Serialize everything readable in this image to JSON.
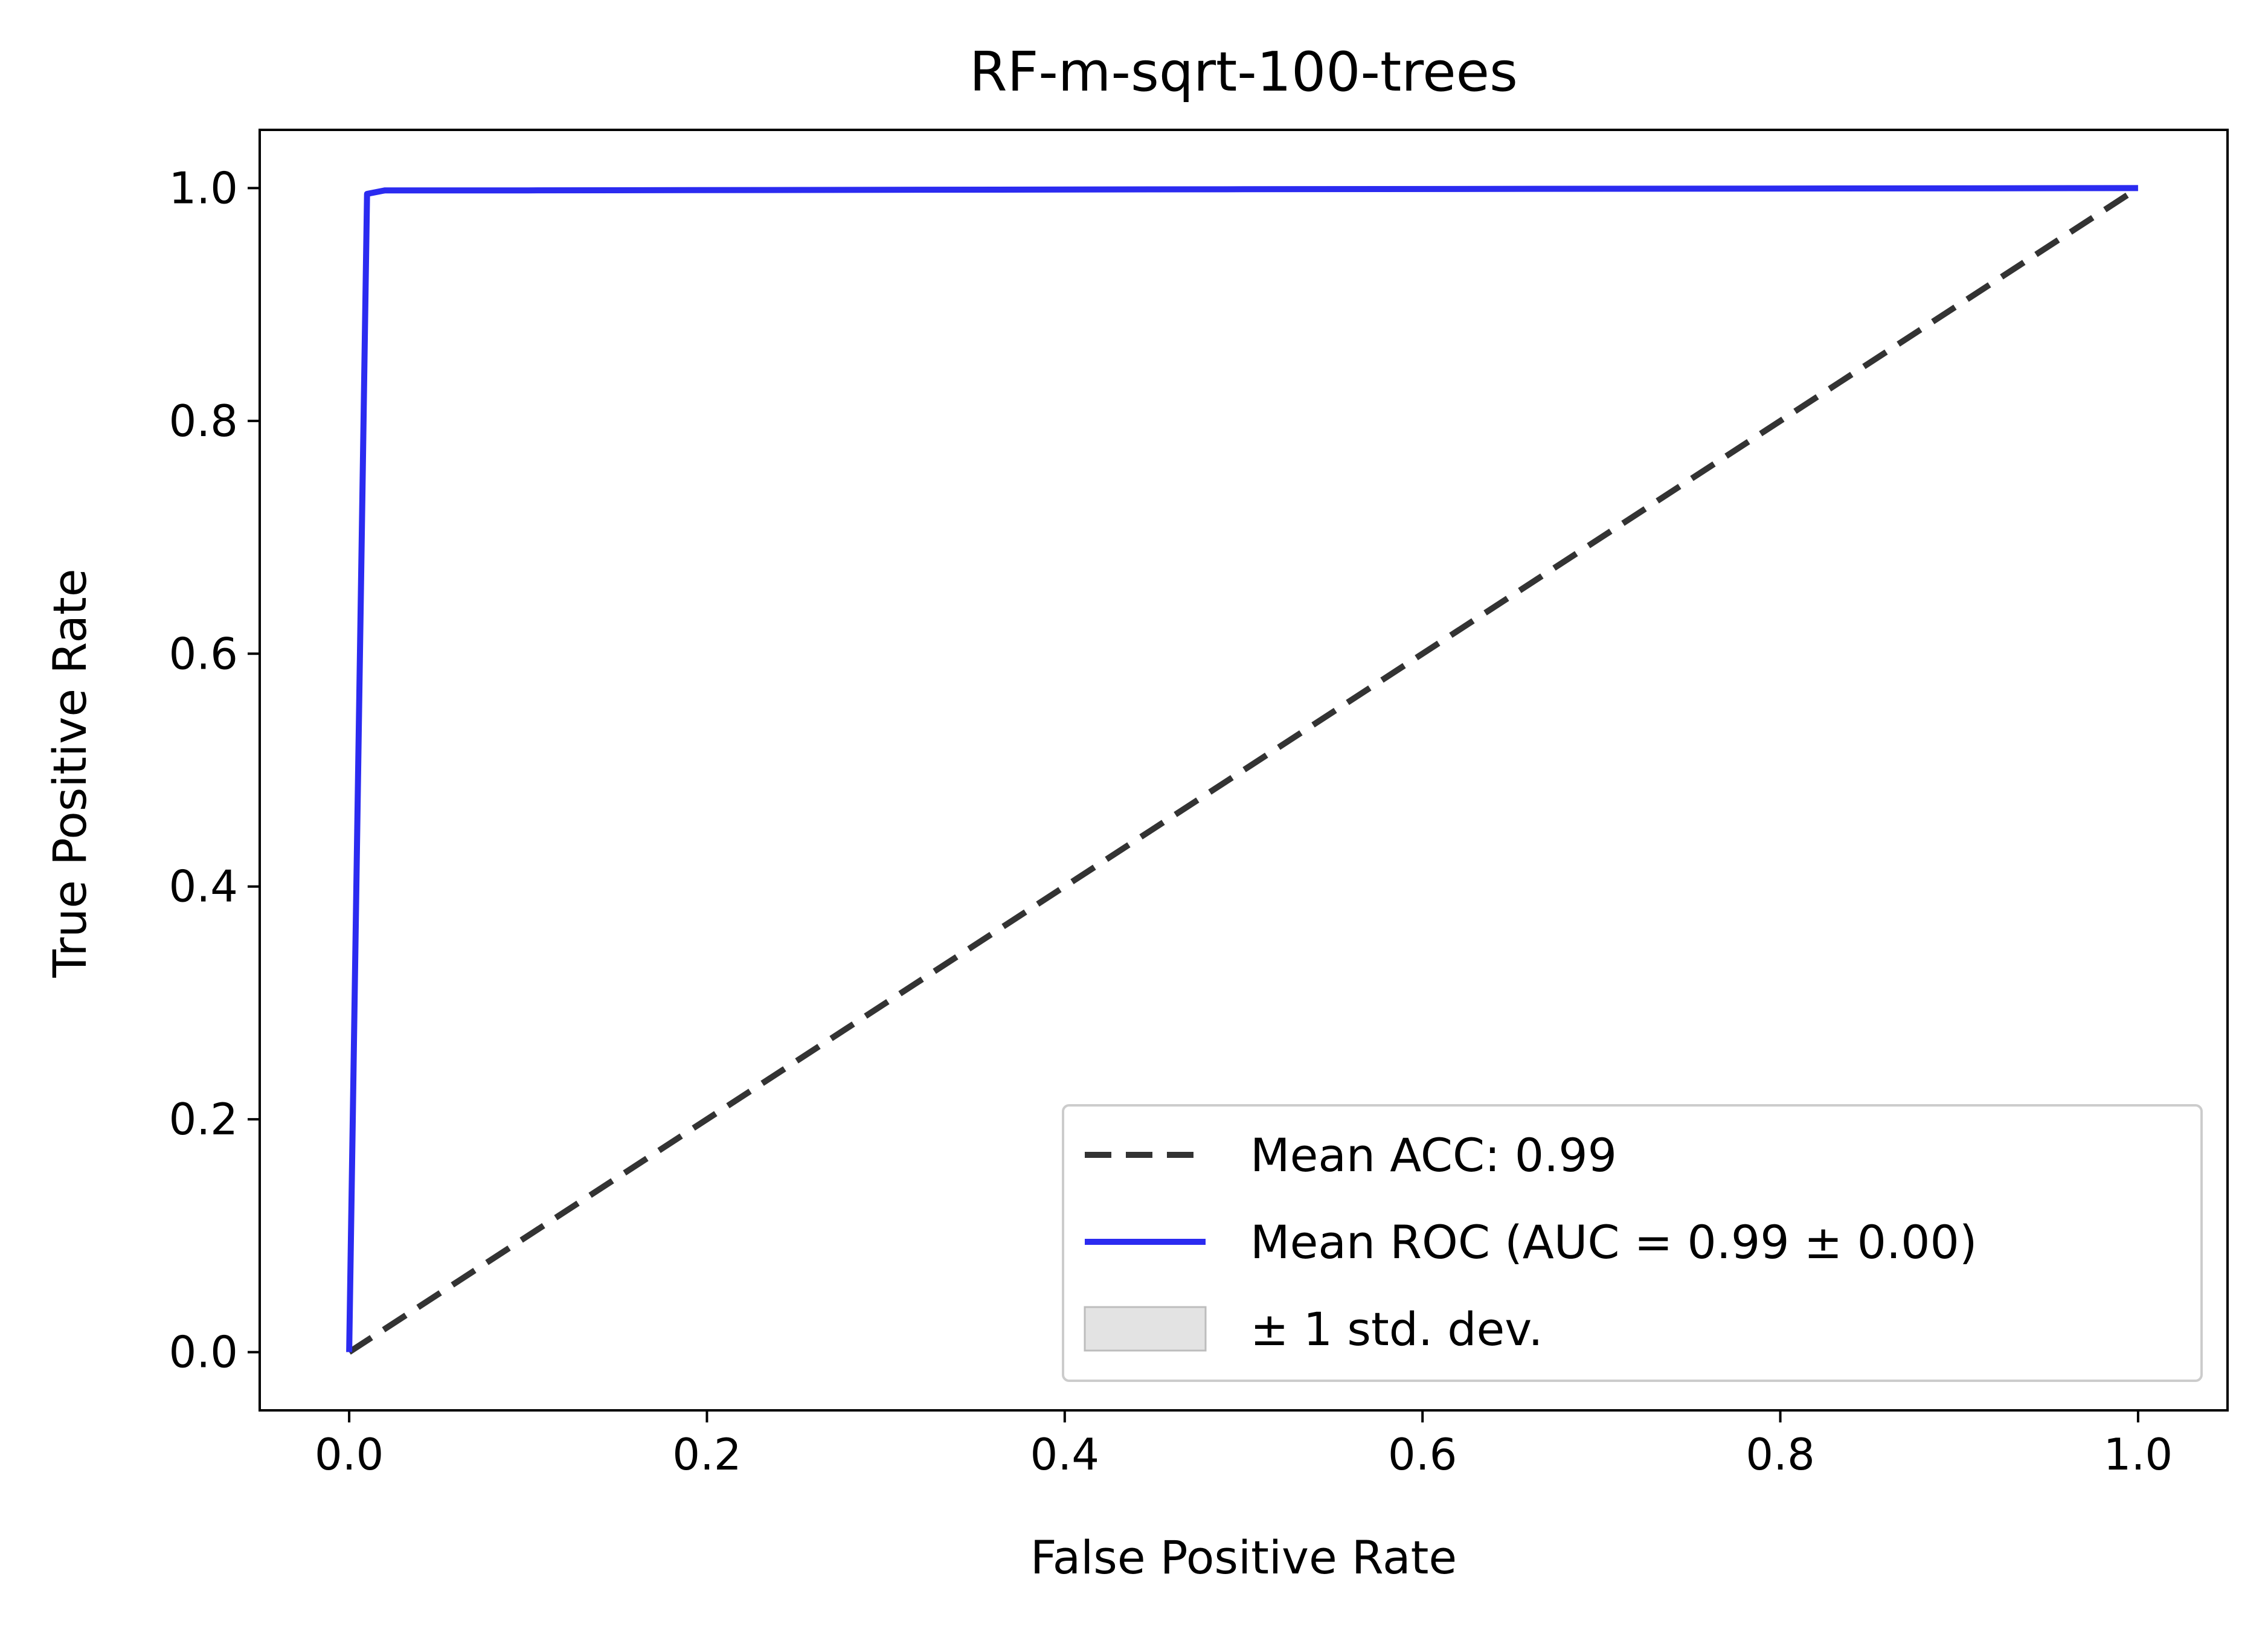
{
  "chart_data": {
    "type": "line",
    "title": "RF-m-sqrt-100-trees",
    "xlabel": "False Positive Rate",
    "ylabel": "True Positive Rate",
    "xlim": [
      -0.05,
      1.05
    ],
    "ylim": [
      -0.05,
      1.05
    ],
    "xticks": [
      0.0,
      0.2,
      0.4,
      0.6,
      0.8,
      1.0
    ],
    "yticks": [
      0.0,
      0.2,
      0.4,
      0.6,
      0.8,
      1.0
    ],
    "xtick_labels": [
      "0.0",
      "0.2",
      "0.4",
      "0.6",
      "0.8",
      "1.0"
    ],
    "ytick_labels": [
      "0.0",
      "0.2",
      "0.4",
      "0.6",
      "0.8",
      "1.0"
    ],
    "grid": false,
    "legend_position": "bottom-right",
    "series": [
      {
        "name": "Mean ACC: 0.99",
        "style": "dashed",
        "color": "#333333",
        "x": [
          0.0,
          1.0
        ],
        "y": [
          0.0,
          1.0
        ]
      },
      {
        "name": "Mean ROC (AUC = 0.99 ± 0.00)",
        "style": "solid",
        "color": "#2b2bf0",
        "x": [
          0.0,
          0.01,
          0.02,
          0.1,
          0.5,
          1.0
        ],
        "y": [
          0.0,
          0.995,
          0.998,
          0.998,
          0.999,
          1.0
        ]
      },
      {
        "name": "± 1 std. dev.",
        "style": "band",
        "color": "#d9d9d9"
      }
    ]
  }
}
